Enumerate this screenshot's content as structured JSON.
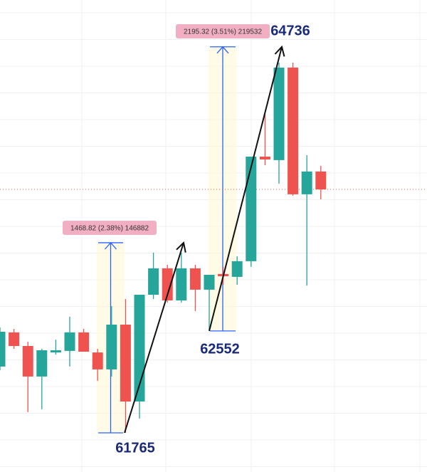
{
  "chart_data": {
    "type": "candlestick",
    "categories": [
      null,
      null,
      null,
      null,
      null,
      null,
      null,
      null,
      null,
      null,
      null,
      null,
      null,
      null,
      null,
      null,
      null,
      null,
      null,
      null,
      null,
      null,
      null,
      null
    ],
    "open": [
      62277,
      62541,
      62436,
      62200,
      62386,
      62398,
      62541,
      62386,
      62255,
      62601,
      62007,
      62832,
      63036,
      62788,
      63036,
      62871,
      62992,
      62970,
      63091,
      63899,
      63872,
      64587,
      63608,
      63784
    ],
    "high": [
      62579,
      62568,
      62469,
      62414,
      62485,
      62662,
      62568,
      62414,
      62744,
      62799,
      62832,
      63157,
      63063,
      63157,
      63063,
      62986,
      63047,
      63129,
      63899,
      64240,
      64625,
      64625,
      63910,
      63828
    ],
    "low": [
      62249,
      62414,
      61925,
      61947,
      62370,
      62277,
      62392,
      62167,
      62200,
      61765,
      61875,
      62799,
      62772,
      62772,
      62706,
      62552,
      62909,
      62909,
      63047,
      63833,
      63690,
      63597,
      62903,
      63569
    ],
    "close": [
      62546,
      62436,
      62200,
      62403,
      62403,
      62541,
      62392,
      62255,
      62601,
      62007,
      62832,
      63036,
      62788,
      63036,
      62871,
      62986,
      62975,
      63091,
      63899,
      63877,
      64587,
      63608,
      63784,
      63646
    ],
    "up_color": "#26a69a",
    "down_color": "#ef5350",
    "ylim": [
      61462.5,
      65109
    ],
    "measurements": [
      {
        "label": "1468.82 (2.38%) 146882",
        "low": 61765,
        "high": 63233.82
      },
      {
        "label": "2195.32 (3.51%) 219532",
        "low": 62552,
        "high": 64747.32
      }
    ],
    "annotations": [
      61765,
      62552,
      64736
    ]
  }
}
